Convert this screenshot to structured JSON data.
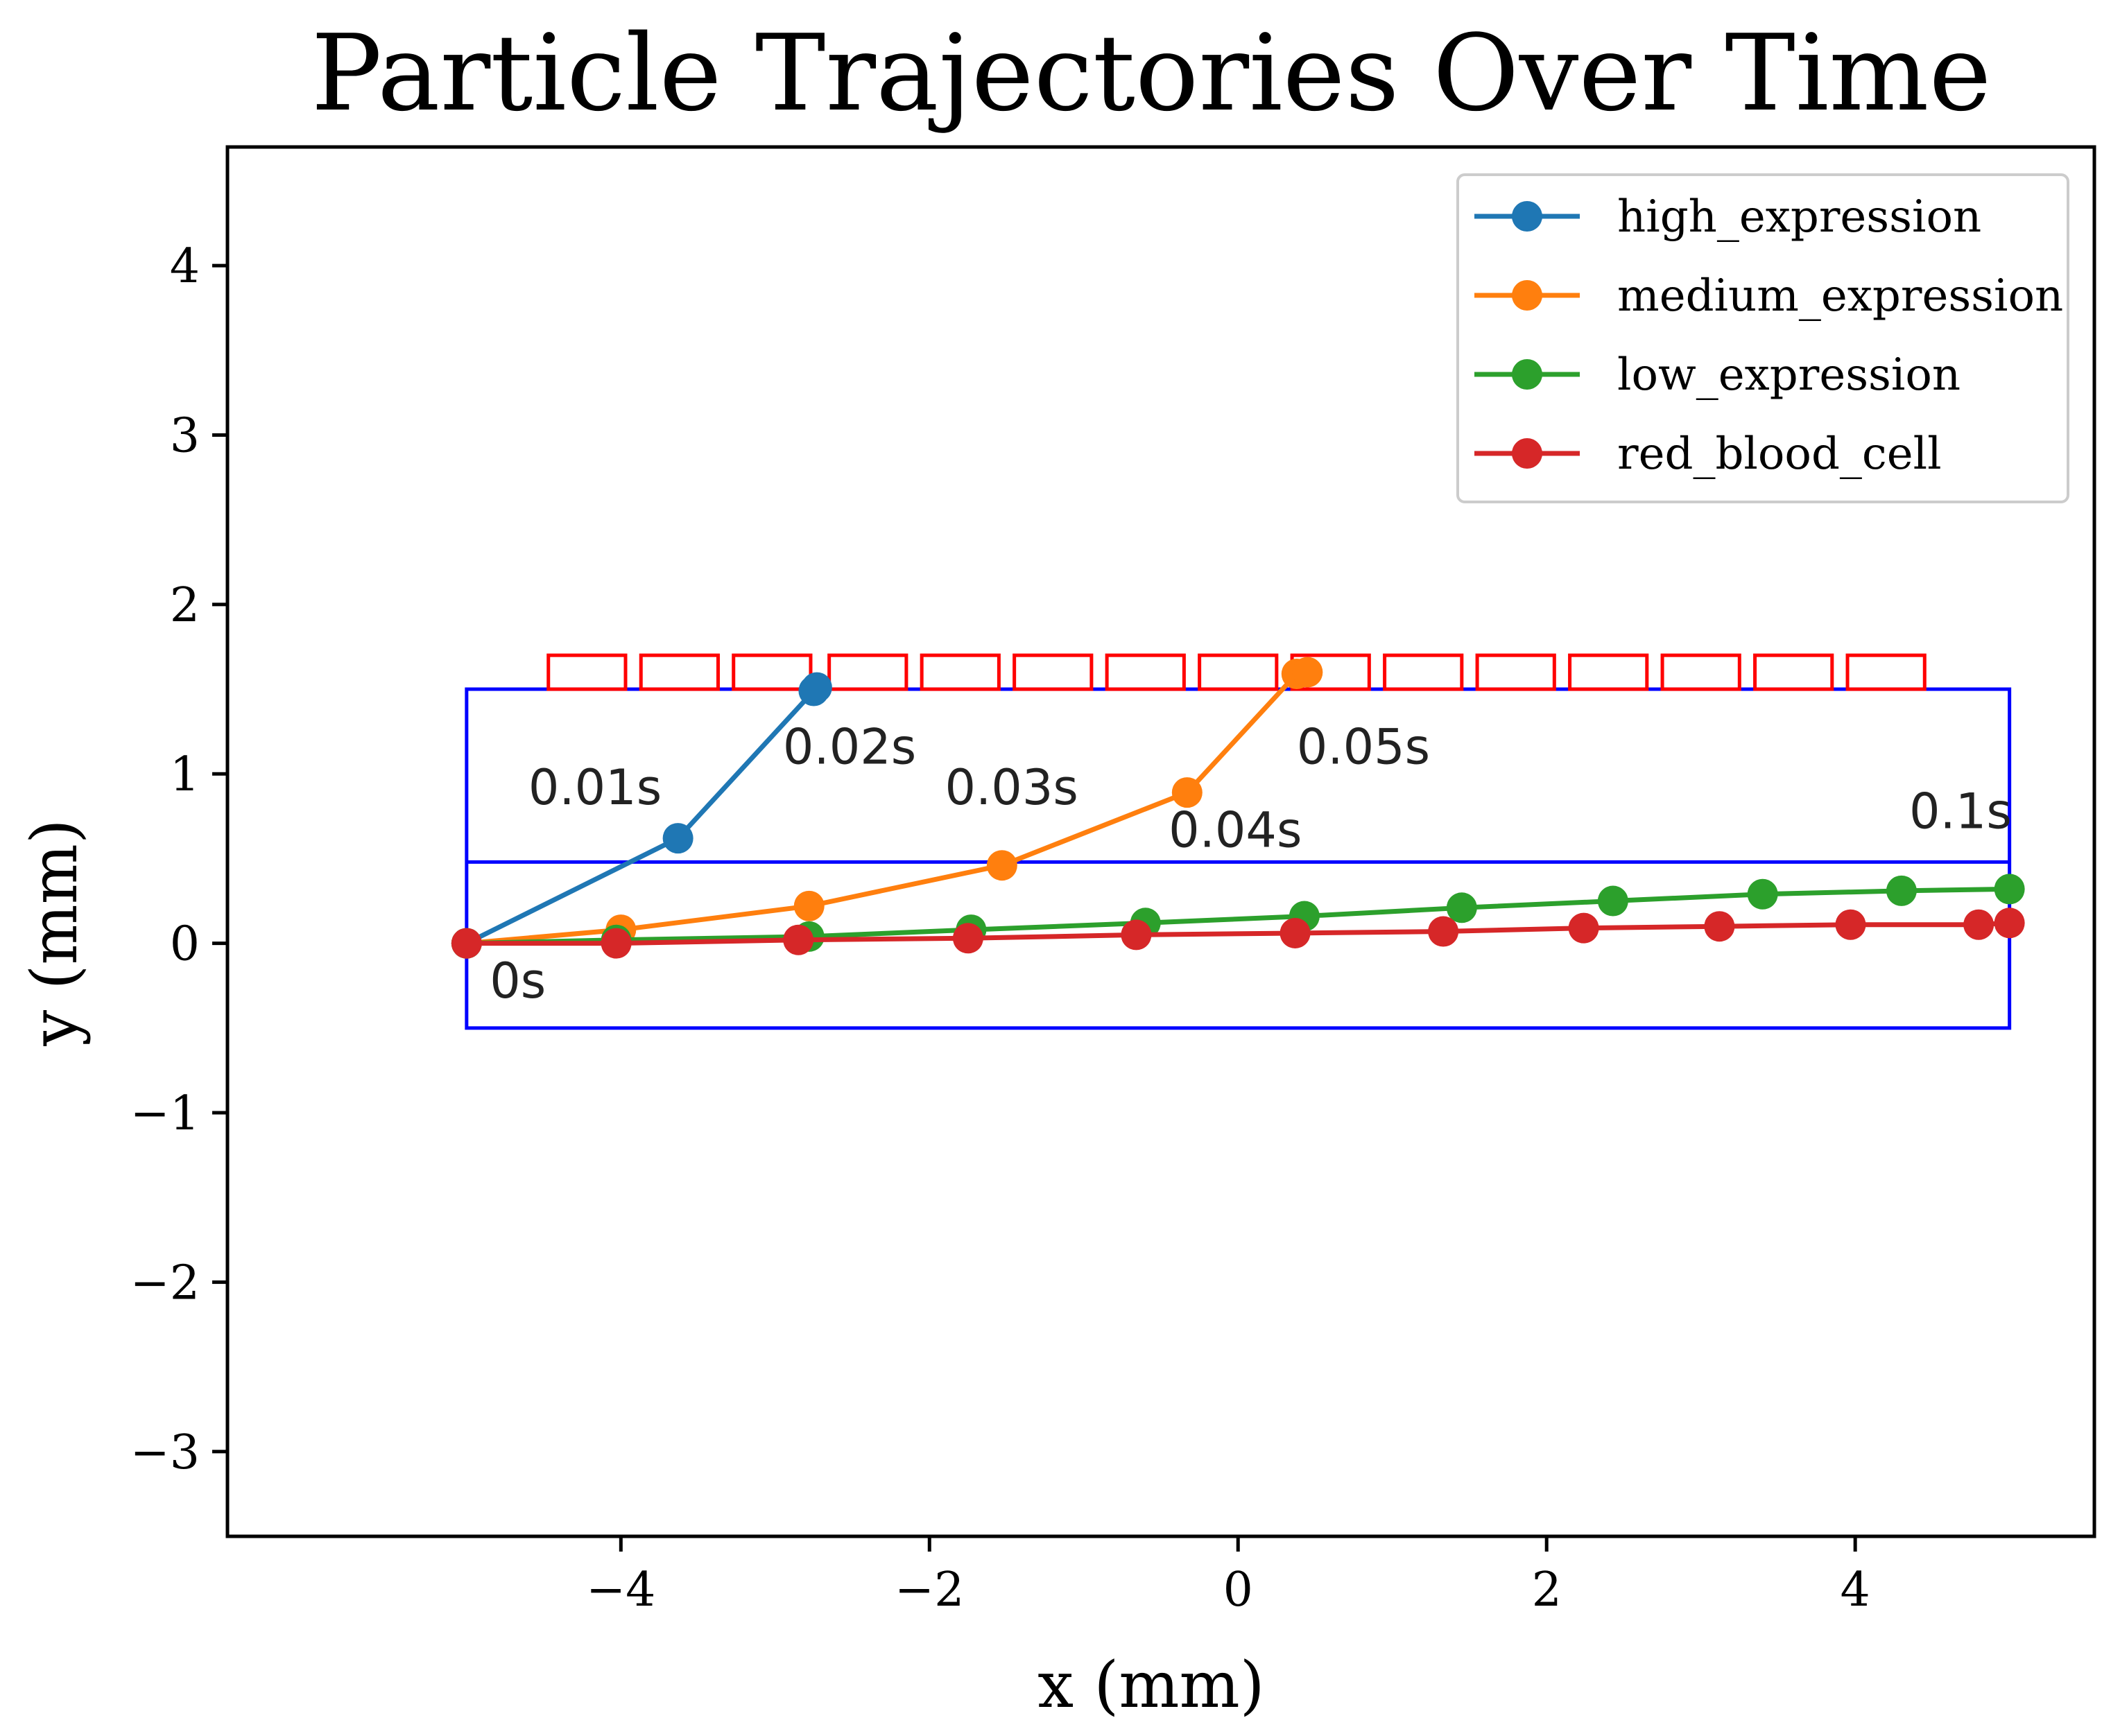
{
  "chart_data": {
    "type": "line",
    "title": "Particle Trajectories Over Time",
    "xlabel": "x (mm)",
    "ylabel": "y (mm)",
    "xlim": [
      -6.55,
      5.55
    ],
    "ylim": [
      -3.5,
      4.7
    ],
    "xticks": [
      -4,
      -2,
      0,
      2,
      4
    ],
    "yticks": [
      -3,
      -2,
      -1,
      0,
      1,
      2,
      3,
      4
    ],
    "xtick_labels": [
      "−4",
      "−2",
      "0",
      "2",
      "4"
    ],
    "ytick_labels": [
      "−3",
      "−2",
      "−1",
      "0",
      "1",
      "2",
      "3",
      "4"
    ],
    "grid": false,
    "legend_position": "top-right",
    "series": [
      {
        "name": "high_expression",
        "color": "#1f77b4",
        "x": [
          -5.0,
          -3.63,
          -2.75,
          -2.73
        ],
        "y": [
          0.0,
          0.62,
          1.49,
          1.51
        ]
      },
      {
        "name": "medium_expression",
        "color": "#ff7f0e",
        "x": [
          -5.0,
          -4.0,
          -2.78,
          -1.53,
          -0.33,
          0.38,
          0.45
        ],
        "y": [
          0.0,
          0.08,
          0.22,
          0.46,
          0.89,
          1.59,
          1.6
        ]
      },
      {
        "name": "low_expression",
        "color": "#2ca02c",
        "x": [
          -5.0,
          -4.03,
          -2.78,
          -1.73,
          -0.6,
          0.43,
          1.45,
          2.43,
          3.4,
          4.3,
          5.0
        ],
        "y": [
          0.0,
          0.02,
          0.04,
          0.08,
          0.12,
          0.16,
          0.21,
          0.25,
          0.29,
          0.31,
          0.32
        ]
      },
      {
        "name": "red_blood_cell",
        "color": "#d62728",
        "x": [
          -5.0,
          -4.03,
          -2.85,
          -1.75,
          -0.66,
          0.37,
          1.33,
          2.24,
          3.12,
          3.97,
          4.8,
          5.0
        ],
        "y": [
          0.0,
          0.0,
          0.02,
          0.03,
          0.05,
          0.06,
          0.07,
          0.09,
          0.1,
          0.11,
          0.11,
          0.12
        ]
      }
    ],
    "annotations": [
      {
        "text": "0s",
        "x": -4.85,
        "y": -0.32
      },
      {
        "text": "0.01s",
        "x": -4.6,
        "y": 0.82
      },
      {
        "text": "0.02s",
        "x": -2.95,
        "y": 1.06
      },
      {
        "text": "0.03s",
        "x": -1.9,
        "y": 0.82
      },
      {
        "text": "0.04s",
        "x": -0.45,
        "y": 0.57
      },
      {
        "text": "0.05s",
        "x": 0.38,
        "y": 1.06
      },
      {
        "text": "0.1s",
        "x": 4.35,
        "y": 0.68
      }
    ],
    "shapes": {
      "channel_rectangles": [
        {
          "x0": -5.0,
          "x1": 5.0,
          "y0": -0.5,
          "y1": 1.5,
          "color": "#0000ff"
        },
        {
          "x0": -5.0,
          "x1": 5.0,
          "y0": 0.48,
          "y1": 0.48,
          "color": "#0000ff"
        }
      ],
      "magnet_color": "#ff0000",
      "magnets": [
        {
          "x0": -4.47,
          "x1": -3.97,
          "y0": 1.5,
          "y1": 1.7
        },
        {
          "x0": -3.87,
          "x1": -3.37,
          "y0": 1.5,
          "y1": 1.7
        },
        {
          "x0": -3.27,
          "x1": -2.77,
          "y0": 1.5,
          "y1": 1.7
        },
        {
          "x0": -2.65,
          "x1": -2.15,
          "y0": 1.5,
          "y1": 1.7
        },
        {
          "x0": -2.05,
          "x1": -1.55,
          "y0": 1.5,
          "y1": 1.7
        },
        {
          "x0": -1.45,
          "x1": -0.95,
          "y0": 1.5,
          "y1": 1.7
        },
        {
          "x0": -0.85,
          "x1": -0.35,
          "y0": 1.5,
          "y1": 1.7
        },
        {
          "x0": -0.25,
          "x1": 0.25,
          "y0": 1.5,
          "y1": 1.7
        },
        {
          "x0": 0.35,
          "x1": 0.85,
          "y0": 1.5,
          "y1": 1.7
        },
        {
          "x0": 0.95,
          "x1": 1.45,
          "y0": 1.5,
          "y1": 1.7
        },
        {
          "x0": 1.55,
          "x1": 2.05,
          "y0": 1.5,
          "y1": 1.7
        },
        {
          "x0": 2.15,
          "x1": 2.65,
          "y0": 1.5,
          "y1": 1.7
        },
        {
          "x0": 2.75,
          "x1": 3.25,
          "y0": 1.5,
          "y1": 1.7
        },
        {
          "x0": 3.35,
          "x1": 3.85,
          "y0": 1.5,
          "y1": 1.7
        },
        {
          "x0": 3.95,
          "x1": 4.45,
          "y0": 1.5,
          "y1": 1.7
        }
      ]
    }
  }
}
